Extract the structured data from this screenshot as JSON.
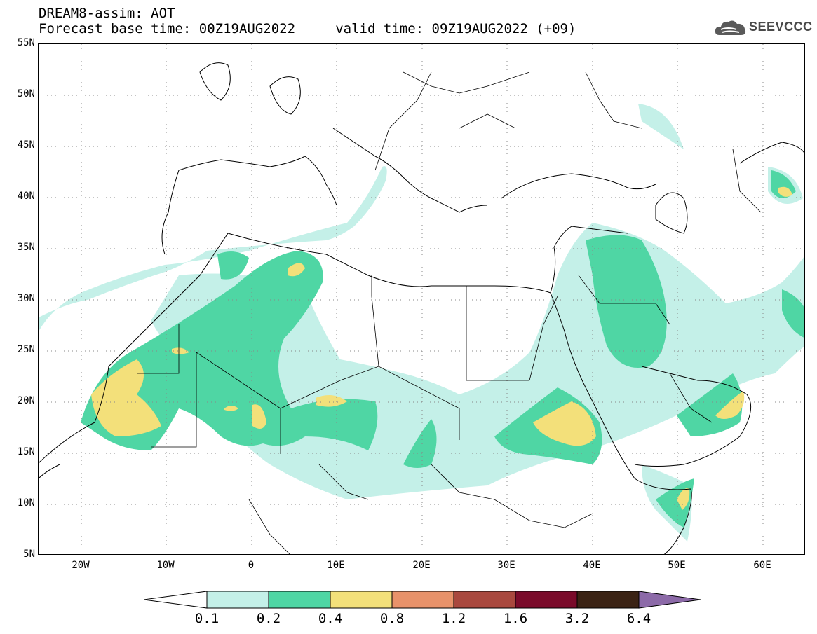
{
  "header": {
    "line1": "DREAM8-assim: AOT",
    "line2": "Forecast base time: 00Z19AUG2022     valid time: 09Z19AUG2022 (+09)"
  },
  "logo": {
    "text": "SEEVCCC",
    "icon": "cloud-icon"
  },
  "map": {
    "lon_range": [
      -25,
      65
    ],
    "lat_range": [
      5,
      55
    ],
    "lat_ticks": [
      "55N",
      "50N",
      "45N",
      "40N",
      "35N",
      "30N",
      "25N",
      "20N",
      "15N",
      "10N",
      "5N"
    ],
    "lon_ticks": [
      "20W",
      "10W",
      "0",
      "10E",
      "20E",
      "30E",
      "40E",
      "50E",
      "60E"
    ],
    "grid": "dotted"
  },
  "colorbar": {
    "labels": [
      "0.1",
      "0.2",
      "0.4",
      "0.8",
      "1.2",
      "1.6",
      "3.2",
      "6.4"
    ],
    "colors": [
      "#ffffff",
      "#c4f0e8",
      "#4fd6a4",
      "#f3e07a",
      "#e8926a",
      "#a9483e",
      "#7a0a2a",
      "#3b2314",
      "#8c6aa8"
    ]
  }
}
